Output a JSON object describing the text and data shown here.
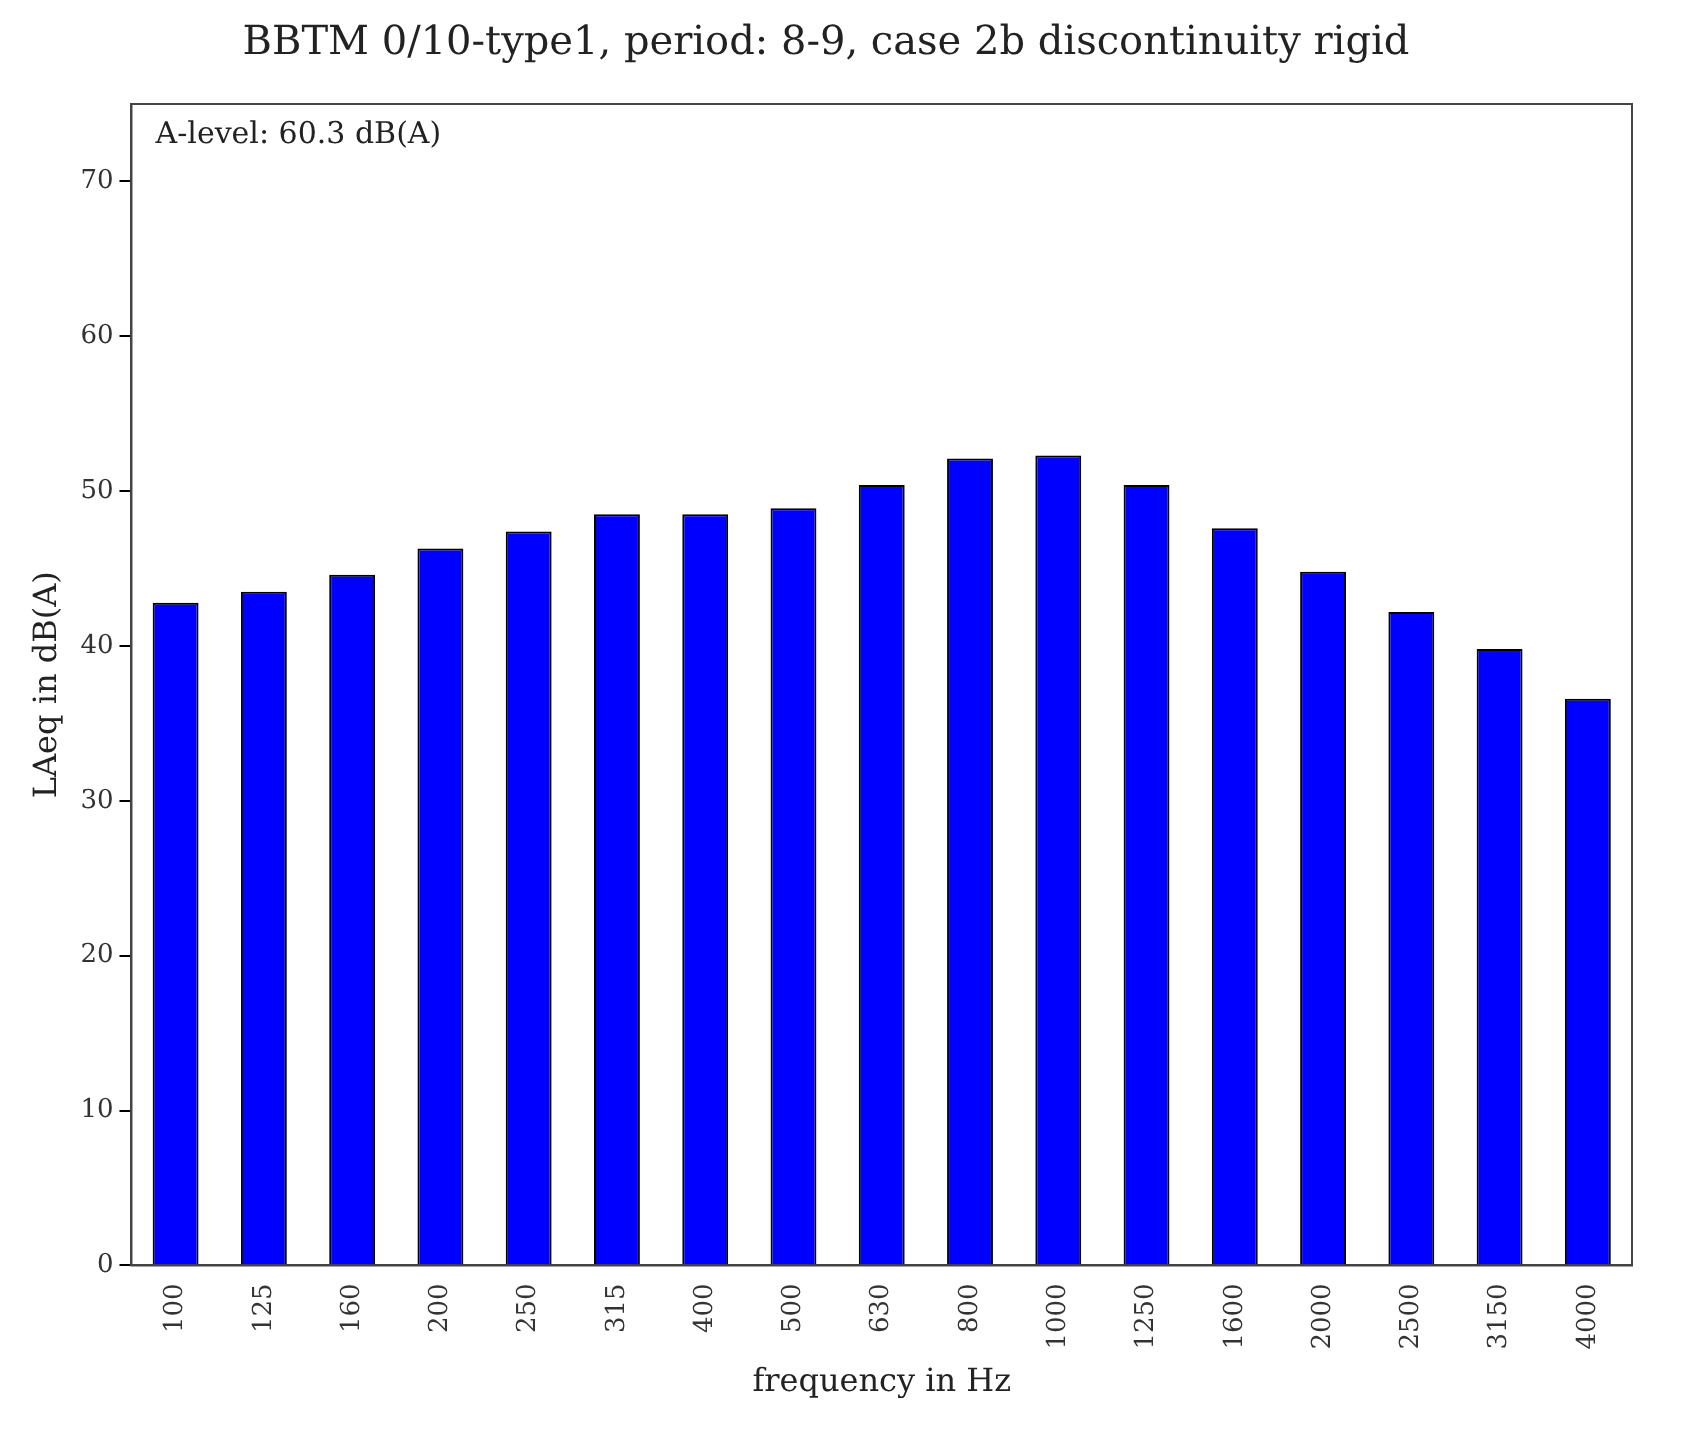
{
  "chart_data": {
    "type": "bar",
    "title": "BBTM 0/10-type1, period: 8-9, case 2b discontinuity rigid",
    "xlabel": "frequency in Hz",
    "ylabel": "LAeq in dB(A)",
    "categories": [
      "100",
      "125",
      "160",
      "200",
      "250",
      "315",
      "400",
      "500",
      "630",
      "800",
      "1000",
      "1250",
      "1600",
      "2000",
      "2500",
      "3150",
      "4000"
    ],
    "values": [
      42.8,
      43.5,
      44.6,
      46.3,
      47.4,
      48.5,
      48.5,
      48.9,
      50.4,
      52.1,
      52.3,
      50.4,
      47.6,
      44.8,
      42.2,
      39.8,
      36.6
    ],
    "color": "#0000ff",
    "ylim": [
      0,
      75
    ],
    "yticks": [
      0,
      10,
      20,
      30,
      40,
      50,
      60,
      70
    ],
    "grid": false,
    "legend": false,
    "annotations": [
      "A-level: 60.3 dB(A)"
    ]
  }
}
